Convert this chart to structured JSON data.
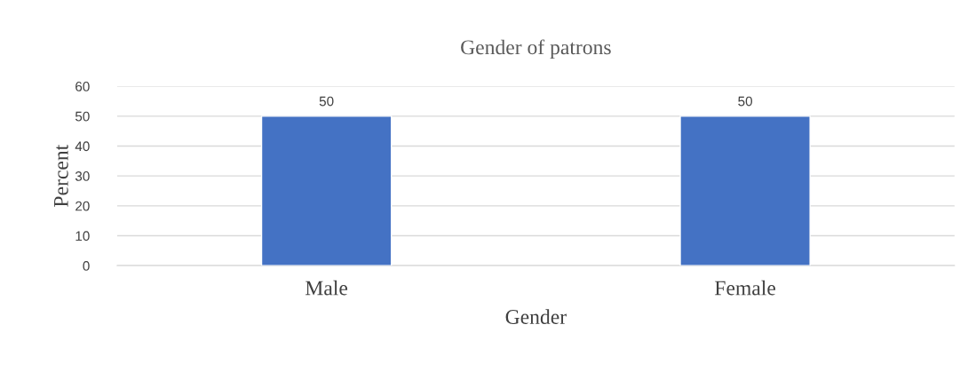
{
  "chart_data": {
    "type": "bar",
    "title": "Gender of patrons",
    "xlabel": "Gender",
    "ylabel": "Percent",
    "categories": [
      "Male",
      "Female"
    ],
    "values": [
      50,
      50
    ],
    "color": "#4472c4",
    "ylim": [
      0,
      60
    ],
    "yticks": [
      0,
      10,
      20,
      30,
      40,
      50,
      60
    ],
    "grid": "y",
    "data_labels": true
  }
}
